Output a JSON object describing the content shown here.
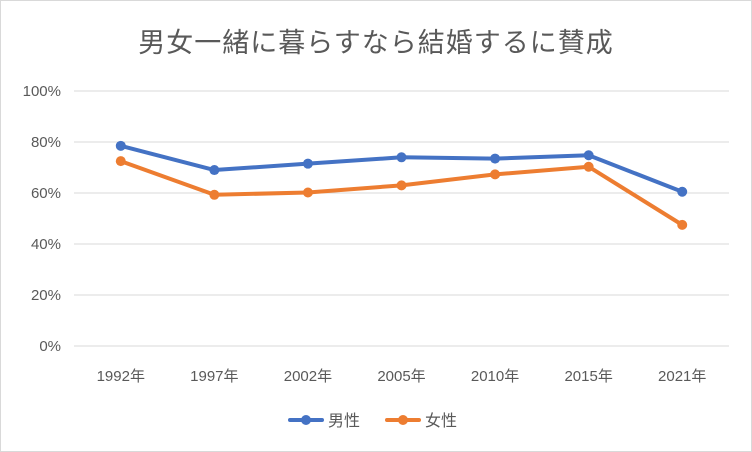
{
  "chart_data": {
    "type": "line",
    "title": "男女一緒に暮らすなら結婚するに賛成",
    "categories": [
      "1992年",
      "1997年",
      "2002年",
      "2005年",
      "2010年",
      "2015年",
      "2021年"
    ],
    "y_ticks": [
      "0%",
      "20%",
      "40%",
      "60%",
      "80%",
      "100%"
    ],
    "ylim": [
      0,
      100
    ],
    "grid": true,
    "legend_position": "bottom",
    "series": [
      {
        "name": "男性",
        "color": "#4472c4",
        "values": [
          78.5,
          69,
          71.5,
          74,
          73.5,
          74.8,
          60.5
        ]
      },
      {
        "name": "女性",
        "color": "#ed7d31",
        "values": [
          72.5,
          59.3,
          60.2,
          63,
          67.3,
          70.3,
          47.5
        ]
      }
    ]
  }
}
